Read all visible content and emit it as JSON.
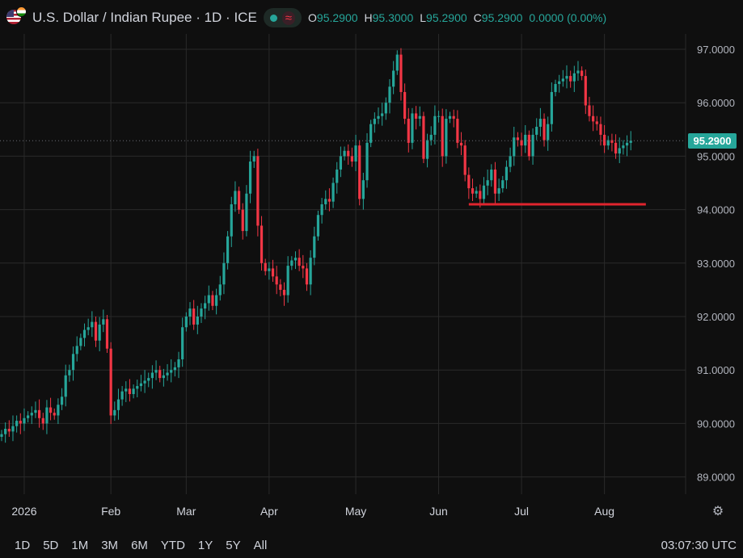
{
  "header": {
    "title": "U.S. Dollar / Indian Rupee · 1D · ICE",
    "ohlc": [
      {
        "k": "O",
        "v": "95.2900"
      },
      {
        "k": "H",
        "v": "95.3000"
      },
      {
        "k": "L",
        "v": "95.2900"
      },
      {
        "k": "C",
        "v": "95.2900"
      }
    ],
    "change": "0.0000 (0.00%)"
  },
  "last_price_label": "95.2900",
  "timeframes": [
    "1D",
    "5D",
    "1M",
    "3M",
    "6M",
    "YTD",
    "1Y",
    "5Y",
    "All"
  ],
  "clock": "03:07:30 UTC",
  "colors": {
    "up": "#26a69a",
    "down": "#f23645",
    "background": "#0f0f0f",
    "grid": "#2a2a2a",
    "support_line": "#e0242e"
  },
  "chart_data": {
    "type": "candlestick",
    "title": "U.S. Dollar / Indian Rupee · 1D · ICE",
    "y_ticks": [
      "97.0000",
      "96.0000",
      "95.0000",
      "94.0000",
      "93.0000",
      "92.0000",
      "91.0000",
      "90.0000",
      "89.0000"
    ],
    "ylim": [
      88.6,
      97.5
    ],
    "x_ticks": [
      "2026",
      "Feb",
      "Mar",
      "Apr",
      "May",
      "Jun",
      "Jul",
      "Aug"
    ],
    "x_tick_index": [
      6,
      29,
      49,
      71,
      94,
      116,
      138,
      160
    ],
    "last_price": 95.29,
    "support_line": {
      "value": 94.1,
      "from_index": 124,
      "to_index": 171
    },
    "closes": [
      89.8,
      89.9,
      89.85,
      89.95,
      90.05,
      90.0,
      90.1,
      90.15,
      90.2,
      90.25,
      90.1,
      90.0,
      90.3,
      90.2,
      90.15,
      90.35,
      90.5,
      90.9,
      91.0,
      91.3,
      91.45,
      91.6,
      91.75,
      91.8,
      91.9,
      91.55,
      91.85,
      91.95,
      91.4,
      90.15,
      90.25,
      90.45,
      90.6,
      90.65,
      90.55,
      90.65,
      90.7,
      90.75,
      90.8,
      90.85,
      90.95,
      91.0,
      90.85,
      90.9,
      90.95,
      91.0,
      91.05,
      91.2,
      91.8,
      92.0,
      92.15,
      91.85,
      92.0,
      92.15,
      92.25,
      92.4,
      92.2,
      92.4,
      92.6,
      93.0,
      93.5,
      94.1,
      94.35,
      94.0,
      93.6,
      94.3,
      94.9,
      95.0,
      93.7,
      93.0,
      92.85,
      92.9,
      92.75,
      92.6,
      92.5,
      92.4,
      92.95,
      93.05,
      93.1,
      92.95,
      92.9,
      92.6,
      93.1,
      93.5,
      93.9,
      94.1,
      94.2,
      94.15,
      94.5,
      94.75,
      95.0,
      95.1,
      95.0,
      94.9,
      95.2,
      94.2,
      94.55,
      95.25,
      95.6,
      95.7,
      95.75,
      95.8,
      96.0,
      96.3,
      96.6,
      96.9,
      96.2,
      95.7,
      95.25,
      95.8,
      95.7,
      95.75,
      94.95,
      95.3,
      95.4,
      95.75,
      95.75,
      95.0,
      95.7,
      95.75,
      95.7,
      95.25,
      95.2,
      94.65,
      94.4,
      94.3,
      94.35,
      94.2,
      94.45,
      94.55,
      94.75,
      94.3,
      94.4,
      94.55,
      94.8,
      95.0,
      95.35,
      95.3,
      95.2,
      95.4,
      95.0,
      95.4,
      95.55,
      95.7,
      95.3,
      95.6,
      96.2,
      96.35,
      96.4,
      96.45,
      96.5,
      96.4,
      96.55,
      96.6,
      96.5,
      95.95,
      95.75,
      95.65,
      95.6,
      95.4,
      95.2,
      95.3,
      95.25,
      95.05,
      95.15,
      95.2,
      95.25,
      95.29
    ]
  }
}
